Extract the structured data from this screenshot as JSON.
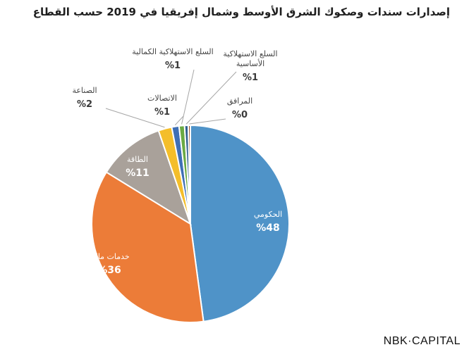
{
  "chart_data": {
    "type": "pie",
    "title": "إصدارات سندات وصكوك الشرق الأوسط وشمال إفريقيا في 2019 حسب القطاع",
    "slices": [
      {
        "label": "الحكومي",
        "display": "48%",
        "value": 48,
        "color": "#4F93C8"
      },
      {
        "label": "خدمات مالية",
        "display": "36%",
        "value": 36,
        "color": "#EC7C38"
      },
      {
        "label": "الطاقة",
        "display": "11%",
        "value": 11,
        "color": "#A9A19A"
      },
      {
        "label": "الصناعة",
        "display": "2%",
        "value": 2.2,
        "color": "#F4BE2A"
      },
      {
        "label": "الاتصالات",
        "display": "1%",
        "value": 1.2,
        "color": "#3F6FB5"
      },
      {
        "label": "السلع الاستهلاكية الكمالية",
        "display": "1%",
        "value": 0.9,
        "color": "#6BAA44"
      },
      {
        "label": "السلع الاستهلاكية الأساسية",
        "display": "1%",
        "value": 0.6,
        "color": "#2E5E8F"
      },
      {
        "label": "المرافق",
        "display": "0%",
        "value": 0.35,
        "color": "#9C4E22"
      }
    ]
  },
  "brand": "NBK·CAPITAL"
}
